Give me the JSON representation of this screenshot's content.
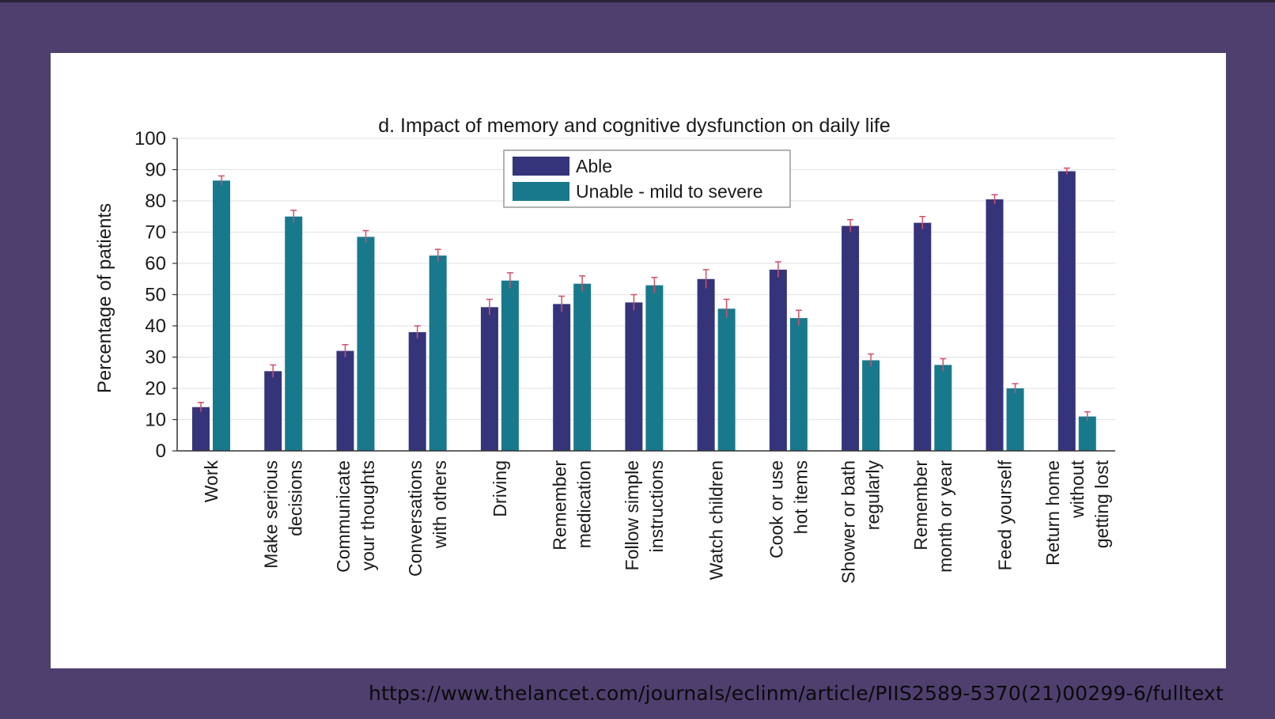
{
  "source_url": "https://www.thelancet.com/journals/eclinm/article/PIIS2589-5370(21)00299-6/fulltext",
  "colors": {
    "able": "#35347a",
    "unable": "#18798d",
    "error": "#d0506a",
    "background": "#4e3f6e"
  },
  "chart_data": {
    "type": "bar",
    "title": "d. Impact of memory and cognitive dysfunction on daily life",
    "ylabel": "Percentage of patients",
    "xlabel": "",
    "ylim": [
      0,
      100
    ],
    "yticks": [
      0,
      10,
      20,
      30,
      40,
      50,
      60,
      70,
      80,
      90,
      100
    ],
    "grid": true,
    "legend_position": "top-center",
    "categories": [
      [
        "Work"
      ],
      [
        "Make serious",
        "decisions"
      ],
      [
        "Communicate",
        "your thoughts"
      ],
      [
        "Conversations",
        "with others"
      ],
      [
        "Driving"
      ],
      [
        "Remember",
        "medication"
      ],
      [
        "Follow simple",
        "instructions"
      ],
      [
        "Watch children"
      ],
      [
        "Cook or use",
        "hot items"
      ],
      [
        "Shower or bath",
        "regularly"
      ],
      [
        "Remember",
        "month or year"
      ],
      [
        "Feed yourself"
      ],
      [
        "Return home",
        "without",
        "getting lost"
      ]
    ],
    "series": [
      {
        "name": "Able",
        "values": [
          14,
          25.5,
          32,
          38,
          46,
          47,
          47.5,
          55,
          58,
          72,
          73,
          80.5,
          89.5
        ],
        "errors": [
          1.5,
          2,
          2,
          2,
          2.5,
          2.5,
          2.5,
          3,
          2.5,
          2,
          2,
          1.5,
          1
        ]
      },
      {
        "name": "Unable - mild to severe",
        "values": [
          86.5,
          75,
          68.5,
          62.5,
          54.5,
          53.5,
          53,
          45.5,
          42.5,
          29,
          27.5,
          20,
          11
        ],
        "errors": [
          1.5,
          2,
          2,
          2,
          2.5,
          2.5,
          2.5,
          3,
          2.5,
          2,
          2,
          1.5,
          1.5
        ]
      }
    ]
  }
}
